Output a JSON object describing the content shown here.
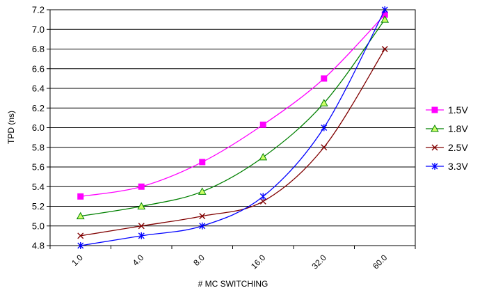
{
  "chart_data": {
    "type": "line",
    "xlabel": "# MC SWITCHING",
    "ylabel": "TPD (ns)",
    "categories": [
      "1.0",
      "4.0",
      "8.0",
      "16.0",
      "32.0",
      "60.0"
    ],
    "ylim": [
      4.8,
      7.2
    ],
    "yticks": [
      "4.8",
      "5.0",
      "5.2",
      "5.4",
      "5.6",
      "5.8",
      "6.0",
      "6.2",
      "6.4",
      "6.6",
      "6.8",
      "7.0",
      "7.2"
    ],
    "grid": "horizontal",
    "legend_position": "right",
    "series": [
      {
        "name": "1.5V",
        "color": "#ff00ff",
        "marker": "square",
        "values": [
          5.3,
          5.4,
          5.65,
          6.03,
          6.5,
          7.15
        ]
      },
      {
        "name": "1.8V",
        "color": "#008000",
        "marker": "triangle",
        "values": [
          5.1,
          5.2,
          5.35,
          5.7,
          6.25,
          7.1
        ]
      },
      {
        "name": "2.5V",
        "color": "#800000",
        "marker": "x",
        "values": [
          4.9,
          5.0,
          5.1,
          5.25,
          5.8,
          6.8
        ]
      },
      {
        "name": "3.3V",
        "color": "#0000ff",
        "marker": "star",
        "values": [
          4.8,
          4.9,
          5.0,
          5.3,
          6.0,
          7.2
        ]
      }
    ]
  }
}
